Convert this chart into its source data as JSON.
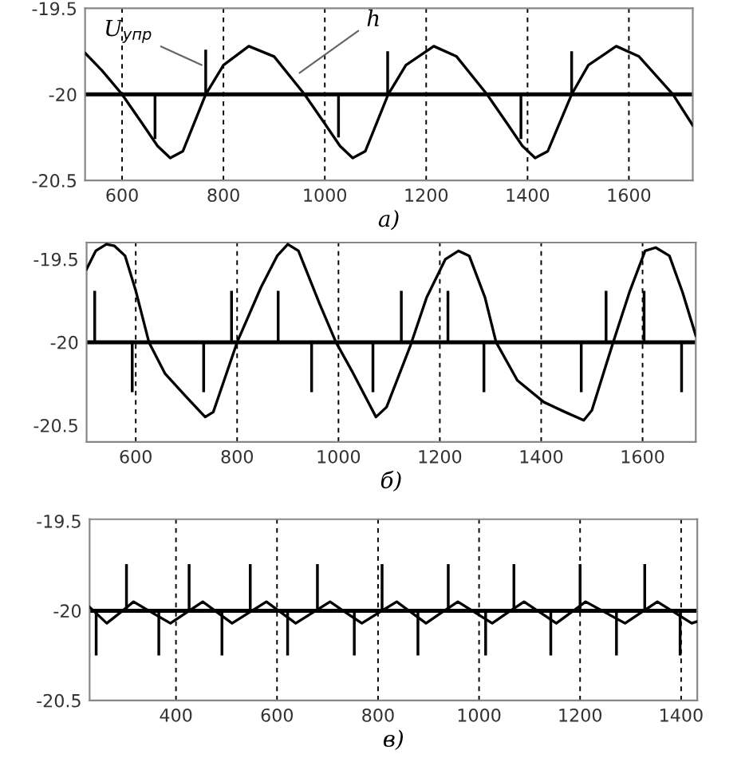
{
  "chart_data": [
    {
      "type": "line",
      "xlabel": "а)",
      "xlim": [
        527,
        1726
      ],
      "xticks": [
        600,
        800,
        1000,
        1200,
        1400,
        1600
      ],
      "ylim": [
        -20.5,
        -19.5
      ],
      "yticks": [
        -19.5,
        -20,
        -20.5
      ],
      "grid": "x",
      "ref_lines": [
        {
          "axis": "y",
          "value": -20,
          "color": "#000000"
        }
      ],
      "annotations": [
        {
          "text": "U$_{упр}$",
          "x": 765,
          "y": -19.84
        },
        {
          "text": "h",
          "x": 943,
          "y": -19.89
        }
      ],
      "series": [
        {
          "color": "#000000",
          "x": [
            527,
            560,
            600,
            640,
            670,
            695,
            720,
            765,
            800,
            850,
            900,
            960,
            1000,
            1030,
            1055,
            1080,
            1125,
            1160,
            1215,
            1260,
            1320,
            1360,
            1390,
            1415,
            1440,
            1487,
            1520,
            1575,
            1620,
            1687,
            1726
          ],
          "values": [
            -19.76,
            -19.86,
            -20.0,
            -20.17,
            -20.3,
            -20.37,
            -20.33,
            -20.0,
            -19.83,
            -19.72,
            -19.78,
            -20.0,
            -20.17,
            -20.3,
            -20.37,
            -20.33,
            -20.0,
            -19.83,
            -19.72,
            -19.78,
            -20.0,
            -20.17,
            -20.3,
            -20.37,
            -20.33,
            -20.0,
            -19.83,
            -19.72,
            -19.78,
            -20.0,
            -20.18
          ]
        },
        {
          "type": "bar",
          "color": "#000000",
          "x": [
            665,
            765,
            1027,
            1124,
            1387,
            1487
          ],
          "base": [
            -20,
            -20,
            -20,
            -20,
            -20,
            -20
          ],
          "values": [
            -0.26,
            0.26,
            -0.25,
            0.25,
            -0.26,
            0.25
          ]
        }
      ]
    },
    {
      "type": "line",
      "xlabel": "б)",
      "xlim": [
        503,
        1705
      ],
      "xticks": [
        600,
        800,
        1000,
        1200,
        1400,
        1600
      ],
      "ylim": [
        -20.6,
        -19.4
      ],
      "yticks": [
        -19.5,
        -20,
        -20.5
      ],
      "grid": "x",
      "ref_lines": [
        {
          "axis": "y",
          "value": -20,
          "color": "#000000"
        }
      ],
      "series": [
        {
          "color": "#000000",
          "x": [
            503,
            521,
            542,
            558,
            579,
            600,
            626,
            658,
            700,
            737,
            753,
            800,
            847,
            879,
            900,
            921,
            963,
            995,
            1026,
            1074,
            1095,
            1142,
            1174,
            1211,
            1237,
            1258,
            1289,
            1311,
            1353,
            1405,
            1447,
            1484,
            1500,
            1542,
            1574,
            1605,
            1626,
            1653,
            1679,
            1705
          ],
          "values": [
            -19.56,
            -19.45,
            -19.41,
            -19.42,
            -19.48,
            -19.69,
            -20.0,
            -20.19,
            -20.33,
            -20.45,
            -20.42,
            -20.0,
            -19.67,
            -19.48,
            -19.41,
            -19.45,
            -19.77,
            -20.0,
            -20.17,
            -20.45,
            -20.39,
            -20.02,
            -19.73,
            -19.5,
            -19.45,
            -19.48,
            -19.73,
            -20.0,
            -20.23,
            -20.36,
            -20.42,
            -20.47,
            -20.41,
            -20.0,
            -19.7,
            -19.45,
            -19.43,
            -19.48,
            -19.7,
            -19.96
          ]
        },
        {
          "type": "bar",
          "color": "#000000",
          "x": [
            519,
            593,
            734,
            789,
            881,
            947,
            1068,
            1124,
            1216,
            1287,
            1479,
            1528,
            1603,
            1677
          ],
          "base": [
            -20,
            -20,
            -20,
            -20,
            -20,
            -20,
            -20,
            -20,
            -20,
            -20,
            -20,
            -20,
            -20,
            -20
          ],
          "values": [
            0.31,
            -0.3,
            -0.3,
            0.31,
            0.31,
            -0.3,
            -0.3,
            0.31,
            0.31,
            -0.3,
            -0.3,
            0.31,
            0.31,
            -0.3
          ]
        }
      ]
    },
    {
      "type": "line",
      "xlabel": "в)",
      "xlim": [
        229,
        1432
      ],
      "xticks": [
        400,
        600,
        800,
        1000,
        1200,
        1400
      ],
      "ylim": [
        -20.5,
        -19.49
      ],
      "yticks": [
        -19.5,
        -20,
        -20.5
      ],
      "grid": "x",
      "ref_lines": [
        {
          "axis": "y",
          "value": -20,
          "color": "#000000"
        }
      ],
      "series": [
        {
          "color": "#000000",
          "x": [
            229,
            263,
            290,
            316,
            352,
            389,
            421,
            453,
            482,
            511,
            545,
            579,
            608,
            637,
            671,
            705,
            736,
            768,
            802,
            837,
            866,
            895,
            926,
            958,
            992,
            1026,
            1057,
            1089,
            1121,
            1153,
            1182,
            1211,
            1250,
            1289,
            1321,
            1353,
            1387,
            1421,
            1432
          ],
          "values": [
            -19.98,
            -20.07,
            -20.01,
            -19.95,
            -20.01,
            -20.07,
            -20.01,
            -19.95,
            -20.01,
            -20.07,
            -20.01,
            -19.95,
            -20.01,
            -20.07,
            -20.01,
            -19.95,
            -20.01,
            -20.07,
            -20.01,
            -19.95,
            -20.01,
            -20.07,
            -20.01,
            -19.95,
            -20.01,
            -20.07,
            -20.01,
            -19.95,
            -20.01,
            -20.07,
            -20.01,
            -19.95,
            -20.01,
            -20.07,
            -20.01,
            -19.95,
            -20.01,
            -20.07,
            -20.06
          ]
        },
        {
          "type": "bar",
          "color": "#000000",
          "x": [
            242,
            302,
            366,
            426,
            491,
            547,
            621,
            680,
            753,
            808,
            879,
            939,
            1013,
            1069,
            1142,
            1200,
            1272,
            1328,
            1398
          ],
          "base": [
            -20,
            -20,
            -20,
            -20,
            -20,
            -20,
            -20,
            -20,
            -20,
            -20,
            -20,
            -20,
            -20,
            -20,
            -20,
            -20,
            -20,
            -20,
            -20
          ],
          "values": [
            -0.25,
            0.26,
            -0.25,
            0.26,
            -0.25,
            0.26,
            -0.25,
            0.26,
            -0.25,
            0.26,
            -0.25,
            0.26,
            -0.25,
            0.26,
            -0.25,
            0.26,
            -0.25,
            0.26,
            -0.25
          ]
        }
      ]
    }
  ]
}
